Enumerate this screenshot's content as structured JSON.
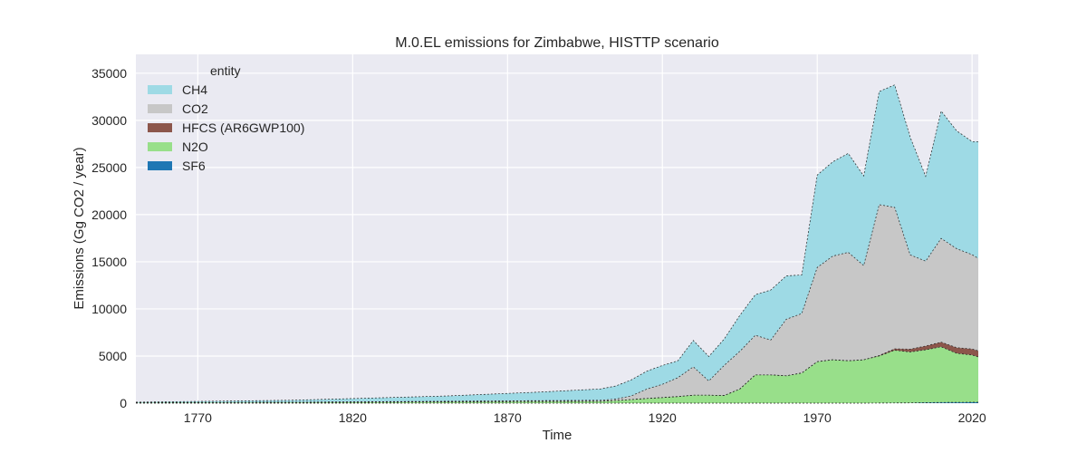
{
  "chart_data": {
    "type": "area",
    "stacked": true,
    "title": "M.0.EL emissions for Zimbabwe, HISTTP scenario",
    "xlabel": "Time",
    "ylabel": "Emissions (Gg CO2 / year)",
    "xlim": [
      1750,
      2022
    ],
    "ylim": [
      0,
      37000
    ],
    "xticks": [
      1770,
      1820,
      1870,
      1920,
      1970,
      2020
    ],
    "yticks": [
      0,
      5000,
      10000,
      15000,
      20000,
      25000,
      30000,
      35000
    ],
    "grid": true,
    "legend": {
      "title": "entity",
      "placement": "top-left"
    },
    "x": [
      1750,
      1800,
      1850,
      1880,
      1900,
      1905,
      1910,
      1915,
      1920,
      1925,
      1930,
      1935,
      1940,
      1945,
      1950,
      1955,
      1960,
      1965,
      1970,
      1975,
      1980,
      1985,
      1990,
      1995,
      2000,
      2005,
      2010,
      2015,
      2020,
      2022
    ],
    "series": [
      {
        "name": "SF6",
        "color": "#1f77b4",
        "values": [
          0,
          0,
          0,
          0,
          0,
          0,
          0,
          0,
          0,
          0,
          0,
          0,
          0,
          0,
          0,
          0,
          0,
          0,
          0,
          0,
          0,
          0,
          5,
          15,
          30,
          60,
          80,
          90,
          100,
          100
        ]
      },
      {
        "name": "N2O",
        "color": "#98df8a",
        "values": [
          40,
          80,
          140,
          180,
          200,
          280,
          380,
          500,
          600,
          700,
          850,
          850,
          820,
          1500,
          3000,
          3000,
          2900,
          3200,
          4400,
          4600,
          4500,
          4600,
          5000,
          5600,
          5400,
          5600,
          5900,
          5200,
          5000,
          4800
        ]
      },
      {
        "name": "HFCS (AR6GWP100)",
        "color": "#8c564b",
        "values": [
          0,
          0,
          0,
          0,
          0,
          0,
          0,
          0,
          0,
          0,
          0,
          0,
          0,
          0,
          0,
          0,
          0,
          0,
          0,
          0,
          0,
          0,
          50,
          150,
          300,
          400,
          500,
          600,
          650,
          650
        ]
      },
      {
        "name": "CO2",
        "color": "#c7c7c7",
        "values": [
          10,
          30,
          60,
          90,
          110,
          150,
          400,
          1000,
          1400,
          2000,
          3000,
          1500,
          3200,
          4000,
          4200,
          3700,
          6000,
          6300,
          10000,
          11000,
          11500,
          10000,
          16000,
          15000,
          10000,
          9000,
          11000,
          10500,
          10000,
          9800
        ]
      },
      {
        "name": "CH4",
        "color": "#9edae5",
        "values": [
          60,
          200,
          560,
          900,
          1200,
          1400,
          1700,
          1900,
          2000,
          1800,
          2800,
          2600,
          2800,
          3800,
          4300,
          5300,
          4600,
          4100,
          9800,
          10000,
          10500,
          9500,
          12000,
          13000,
          12500,
          9000,
          13500,
          12500,
          12000,
          12400
        ]
      }
    ]
  }
}
